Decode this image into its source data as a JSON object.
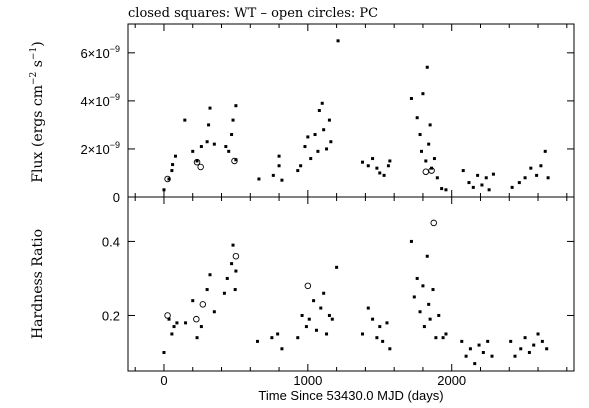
{
  "header_text": "closed squares: WT – open circles: PC",
  "chart_data": [
    {
      "type": "scatter",
      "panel": "top",
      "ylabel_parts": [
        "Flux (ergs cm",
        "−2",
        " s",
        "−1",
        ")"
      ],
      "xlim": [
        -250,
        2850
      ],
      "ylim": [
        0,
        7.2e-09
      ],
      "y_ticks": [
        0,
        2e-09,
        4e-09,
        6e-09
      ],
      "y_tick_labels": [
        {
          "mant": "0",
          "exp": ""
        },
        {
          "mant": "2×10",
          "exp": "−9"
        },
        {
          "mant": "4×10",
          "exp": "−9"
        },
        {
          "mant": "6×10",
          "exp": "−9"
        }
      ],
      "legend": [
        "closed squares: WT",
        "open circles: PC"
      ],
      "series": [
        {
          "name": "WT",
          "marker": "filled-square",
          "points": [
            [
              0,
              3e-10
            ],
            [
              35,
              7.5e-10
            ],
            [
              55,
              1.1e-09
            ],
            [
              60,
              1.35e-09
            ],
            [
              80,
              1.7e-09
            ],
            [
              145,
              3.2e-09
            ],
            [
              200,
              1.9e-09
            ],
            [
              230,
              1.5e-09
            ],
            [
              260,
              2.1e-09
            ],
            [
              300,
              2.3e-09
            ],
            [
              310,
              3e-09
            ],
            [
              320,
              3.7e-09
            ],
            [
              350,
              2.2e-09
            ],
            [
              430,
              2.1e-09
            ],
            [
              450,
              1.9e-09
            ],
            [
              470,
              2.6e-09
            ],
            [
              480,
              3.2e-09
            ],
            [
              500,
              3.8e-09
            ],
            [
              500,
              1.55e-09
            ],
            [
              660,
              7.5e-10
            ],
            [
              760,
              9e-10
            ],
            [
              800,
              1.3e-09
            ],
            [
              800,
              1.7e-09
            ],
            [
              820,
              7e-10
            ],
            [
              930,
              1.1e-09
            ],
            [
              950,
              1.3e-09
            ],
            [
              980,
              2.1e-09
            ],
            [
              1000,
              2.5e-09
            ],
            [
              1020,
              1.6e-09
            ],
            [
              1050,
              2.6e-09
            ],
            [
              1070,
              1.9e-09
            ],
            [
              1080,
              3.6e-09
            ],
            [
              1100,
              3.9e-09
            ],
            [
              1110,
              2.8e-09
            ],
            [
              1130,
              2e-09
            ],
            [
              1150,
              3.2e-09
            ],
            [
              1160,
              2.3e-09
            ],
            [
              1210,
              6.5e-09
            ],
            [
              1380,
              1.45e-09
            ],
            [
              1420,
              1.3e-09
            ],
            [
              1450,
              1.6e-09
            ],
            [
              1480,
              1.2e-09
            ],
            [
              1500,
              1e-09
            ],
            [
              1530,
              9e-10
            ],
            [
              1560,
              1.3e-09
            ],
            [
              1570,
              1.5e-09
            ],
            [
              1720,
              4.1e-09
            ],
            [
              1760,
              3.3e-09
            ],
            [
              1780,
              2.6e-09
            ],
            [
              1790,
              1.9e-09
            ],
            [
              1800,
              4.3e-09
            ],
            [
              1820,
              1.5e-09
            ],
            [
              1830,
              5.4e-09
            ],
            [
              1840,
              2.2e-09
            ],
            [
              1850,
              3e-09
            ],
            [
              1860,
              1.2e-09
            ],
            [
              1880,
              1.6e-09
            ],
            [
              1900,
              8e-10
            ],
            [
              1930,
              3.5e-10
            ],
            [
              1960,
              3e-10
            ],
            [
              2080,
              1.1e-09
            ],
            [
              2120,
              6e-10
            ],
            [
              2150,
              4e-10
            ],
            [
              2180,
              9e-10
            ],
            [
              2210,
              5e-10
            ],
            [
              2240,
              8e-10
            ],
            [
              2260,
              3e-10
            ],
            [
              2290,
              9.5e-10
            ],
            [
              2420,
              4e-10
            ],
            [
              2470,
              6e-10
            ],
            [
              2510,
              8e-10
            ],
            [
              2550,
              1.2e-09
            ],
            [
              2590,
              9e-10
            ],
            [
              2620,
              1.3e-09
            ],
            [
              2650,
              1.9e-09
            ],
            [
              2670,
              8e-10
            ]
          ]
        },
        {
          "name": "PC",
          "marker": "open-circle",
          "points": [
            [
              25,
              7.5e-10
            ],
            [
              230,
              1.45e-09
            ],
            [
              255,
              1.25e-09
            ],
            [
              490,
              1.5e-09
            ],
            [
              1820,
              1.05e-09
            ],
            [
              1860,
              1.1e-09
            ]
          ]
        }
      ]
    },
    {
      "type": "scatter",
      "panel": "bottom",
      "ylabel": "Hardness Ratio",
      "xlabel": "Time Since 53430.0 MJD (days)",
      "xlim": [
        -250,
        2850
      ],
      "ylim": [
        0.05,
        0.52
      ],
      "x_ticks": [
        0,
        1000,
        2000
      ],
      "x_tick_labels": [
        "0",
        "1000",
        "2000"
      ],
      "y_ticks": [
        0.2,
        0.4
      ],
      "y_tick_labels": [
        "0.2",
        "0.4"
      ],
      "series": [
        {
          "name": "WT",
          "marker": "filled-square",
          "points": [
            [
              0,
              0.1
            ],
            [
              35,
              0.19
            ],
            [
              55,
              0.15
            ],
            [
              70,
              0.17
            ],
            [
              90,
              0.18
            ],
            [
              150,
              0.18
            ],
            [
              200,
              0.24
            ],
            [
              230,
              0.14
            ],
            [
              260,
              0.17
            ],
            [
              300,
              0.27
            ],
            [
              320,
              0.31
            ],
            [
              350,
              0.21
            ],
            [
              420,
              0.26
            ],
            [
              440,
              0.3
            ],
            [
              470,
              0.34
            ],
            [
              480,
              0.39
            ],
            [
              495,
              0.27
            ],
            [
              500,
              0.32
            ],
            [
              650,
              0.13
            ],
            [
              750,
              0.14
            ],
            [
              790,
              0.15
            ],
            [
              820,
              0.11
            ],
            [
              930,
              0.14
            ],
            [
              960,
              0.2
            ],
            [
              990,
              0.17
            ],
            [
              1010,
              0.19
            ],
            [
              1040,
              0.24
            ],
            [
              1060,
              0.16
            ],
            [
              1090,
              0.22
            ],
            [
              1110,
              0.26
            ],
            [
              1130,
              0.15
            ],
            [
              1150,
              0.2
            ],
            [
              1170,
              0.19
            ],
            [
              1200,
              0.33
            ],
            [
              1380,
              0.15
            ],
            [
              1420,
              0.22
            ],
            [
              1450,
              0.19
            ],
            [
              1480,
              0.14
            ],
            [
              1500,
              0.17
            ],
            [
              1520,
              0.13
            ],
            [
              1550,
              0.18
            ],
            [
              1570,
              0.11
            ],
            [
              1720,
              0.4
            ],
            [
              1740,
              0.25
            ],
            [
              1760,
              0.3
            ],
            [
              1780,
              0.21
            ],
            [
              1800,
              0.28
            ],
            [
              1810,
              0.17
            ],
            [
              1830,
              0.36
            ],
            [
              1840,
              0.23
            ],
            [
              1850,
              0.19
            ],
            [
              1870,
              0.27
            ],
            [
              1890,
              0.14
            ],
            [
              1910,
              0.2
            ],
            [
              1940,
              0.14
            ],
            [
              1960,
              0.15
            ],
            [
              2070,
              0.13
            ],
            [
              2100,
              0.09
            ],
            [
              2130,
              0.11
            ],
            [
              2160,
              0.07
            ],
            [
              2190,
              0.12
            ],
            [
              2220,
              0.1
            ],
            [
              2250,
              0.13
            ],
            [
              2280,
              0.09
            ],
            [
              2410,
              0.13
            ],
            [
              2440,
              0.09
            ],
            [
              2480,
              0.11
            ],
            [
              2510,
              0.14
            ],
            [
              2540,
              0.1
            ],
            [
              2570,
              0.12
            ],
            [
              2600,
              0.15
            ],
            [
              2630,
              0.13
            ],
            [
              2660,
              0.11
            ]
          ]
        },
        {
          "name": "PC",
          "marker": "open-circle",
          "points": [
            [
              25,
              0.2
            ],
            [
              225,
              0.19
            ],
            [
              270,
              0.23
            ],
            [
              500,
              0.36
            ],
            [
              1000,
              0.28
            ],
            [
              1875,
              0.45
            ]
          ]
        }
      ]
    }
  ]
}
